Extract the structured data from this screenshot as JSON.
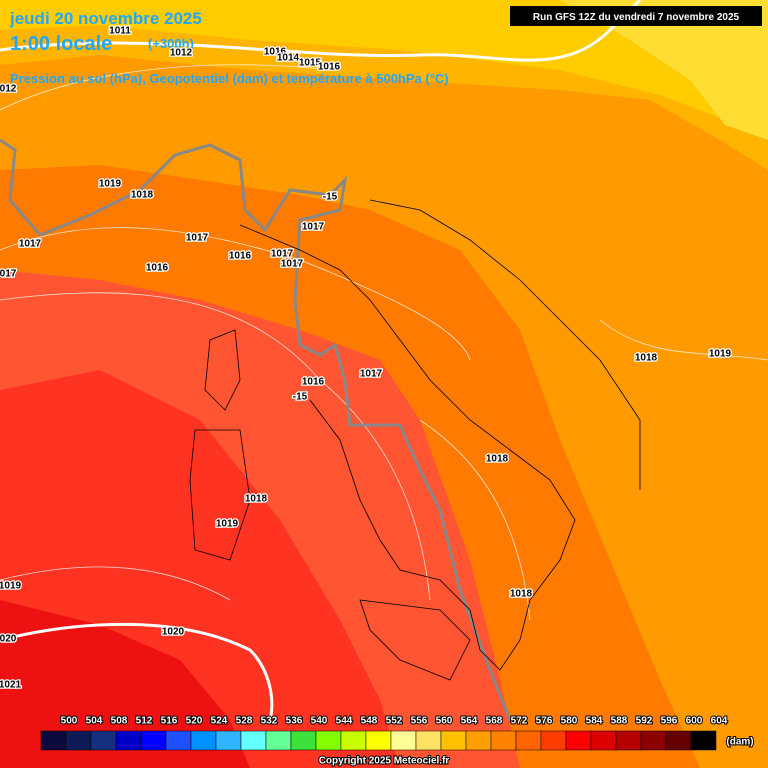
{
  "header": {
    "date": "jeudi 20 novembre 2025",
    "time": "1:00 locale",
    "lead": "(+300h)",
    "fields": "Pression au sol (hPa), Geopotentiel (dam) et température à 500hPa (°C)",
    "run": "Run GFS 12Z du vendredi 7 novembre 2025"
  },
  "map": {
    "isobar_labels": [
      "1011",
      "1012",
      "1016",
      "1014",
      "1015",
      "1016",
      "012",
      "1019",
      "1018",
      "1017",
      "1017",
      "1017",
      "1016",
      "1017",
      "1017",
      "1016",
      "017",
      "1016",
      "1017",
      "1018",
      "1019",
      "1018",
      "1018",
      "1019",
      "1019",
      "1018",
      "1020",
      "020",
      "1021"
    ],
    "temperature_labels": [
      "-15",
      "-15"
    ]
  },
  "colorbar": {
    "levels": [
      500,
      504,
      508,
      512,
      516,
      520,
      524,
      528,
      532,
      536,
      540,
      544,
      548,
      552,
      556,
      560,
      564,
      568,
      572,
      576,
      580,
      584,
      588,
      592,
      596,
      600,
      604
    ],
    "colors": [
      "#0a0a3c",
      "#0c1a55",
      "#16307f",
      "#0000c8",
      "#0000ff",
      "#1e50ff",
      "#0090ff",
      "#30b4ff",
      "#64ffff",
      "#64ff96",
      "#3ce13c",
      "#82ff00",
      "#c8ff00",
      "#ffff00",
      "#ffff96",
      "#ffe164",
      "#ffc000",
      "#ffa000",
      "#ff8200",
      "#ff6400",
      "#ff3c00",
      "#ff0000",
      "#dc0000",
      "#b40000",
      "#8c0000",
      "#640000",
      "#000000"
    ],
    "unit": "(dam)"
  },
  "footer": {
    "copyright": "Copyright 2025 Meteociel.fr"
  }
}
